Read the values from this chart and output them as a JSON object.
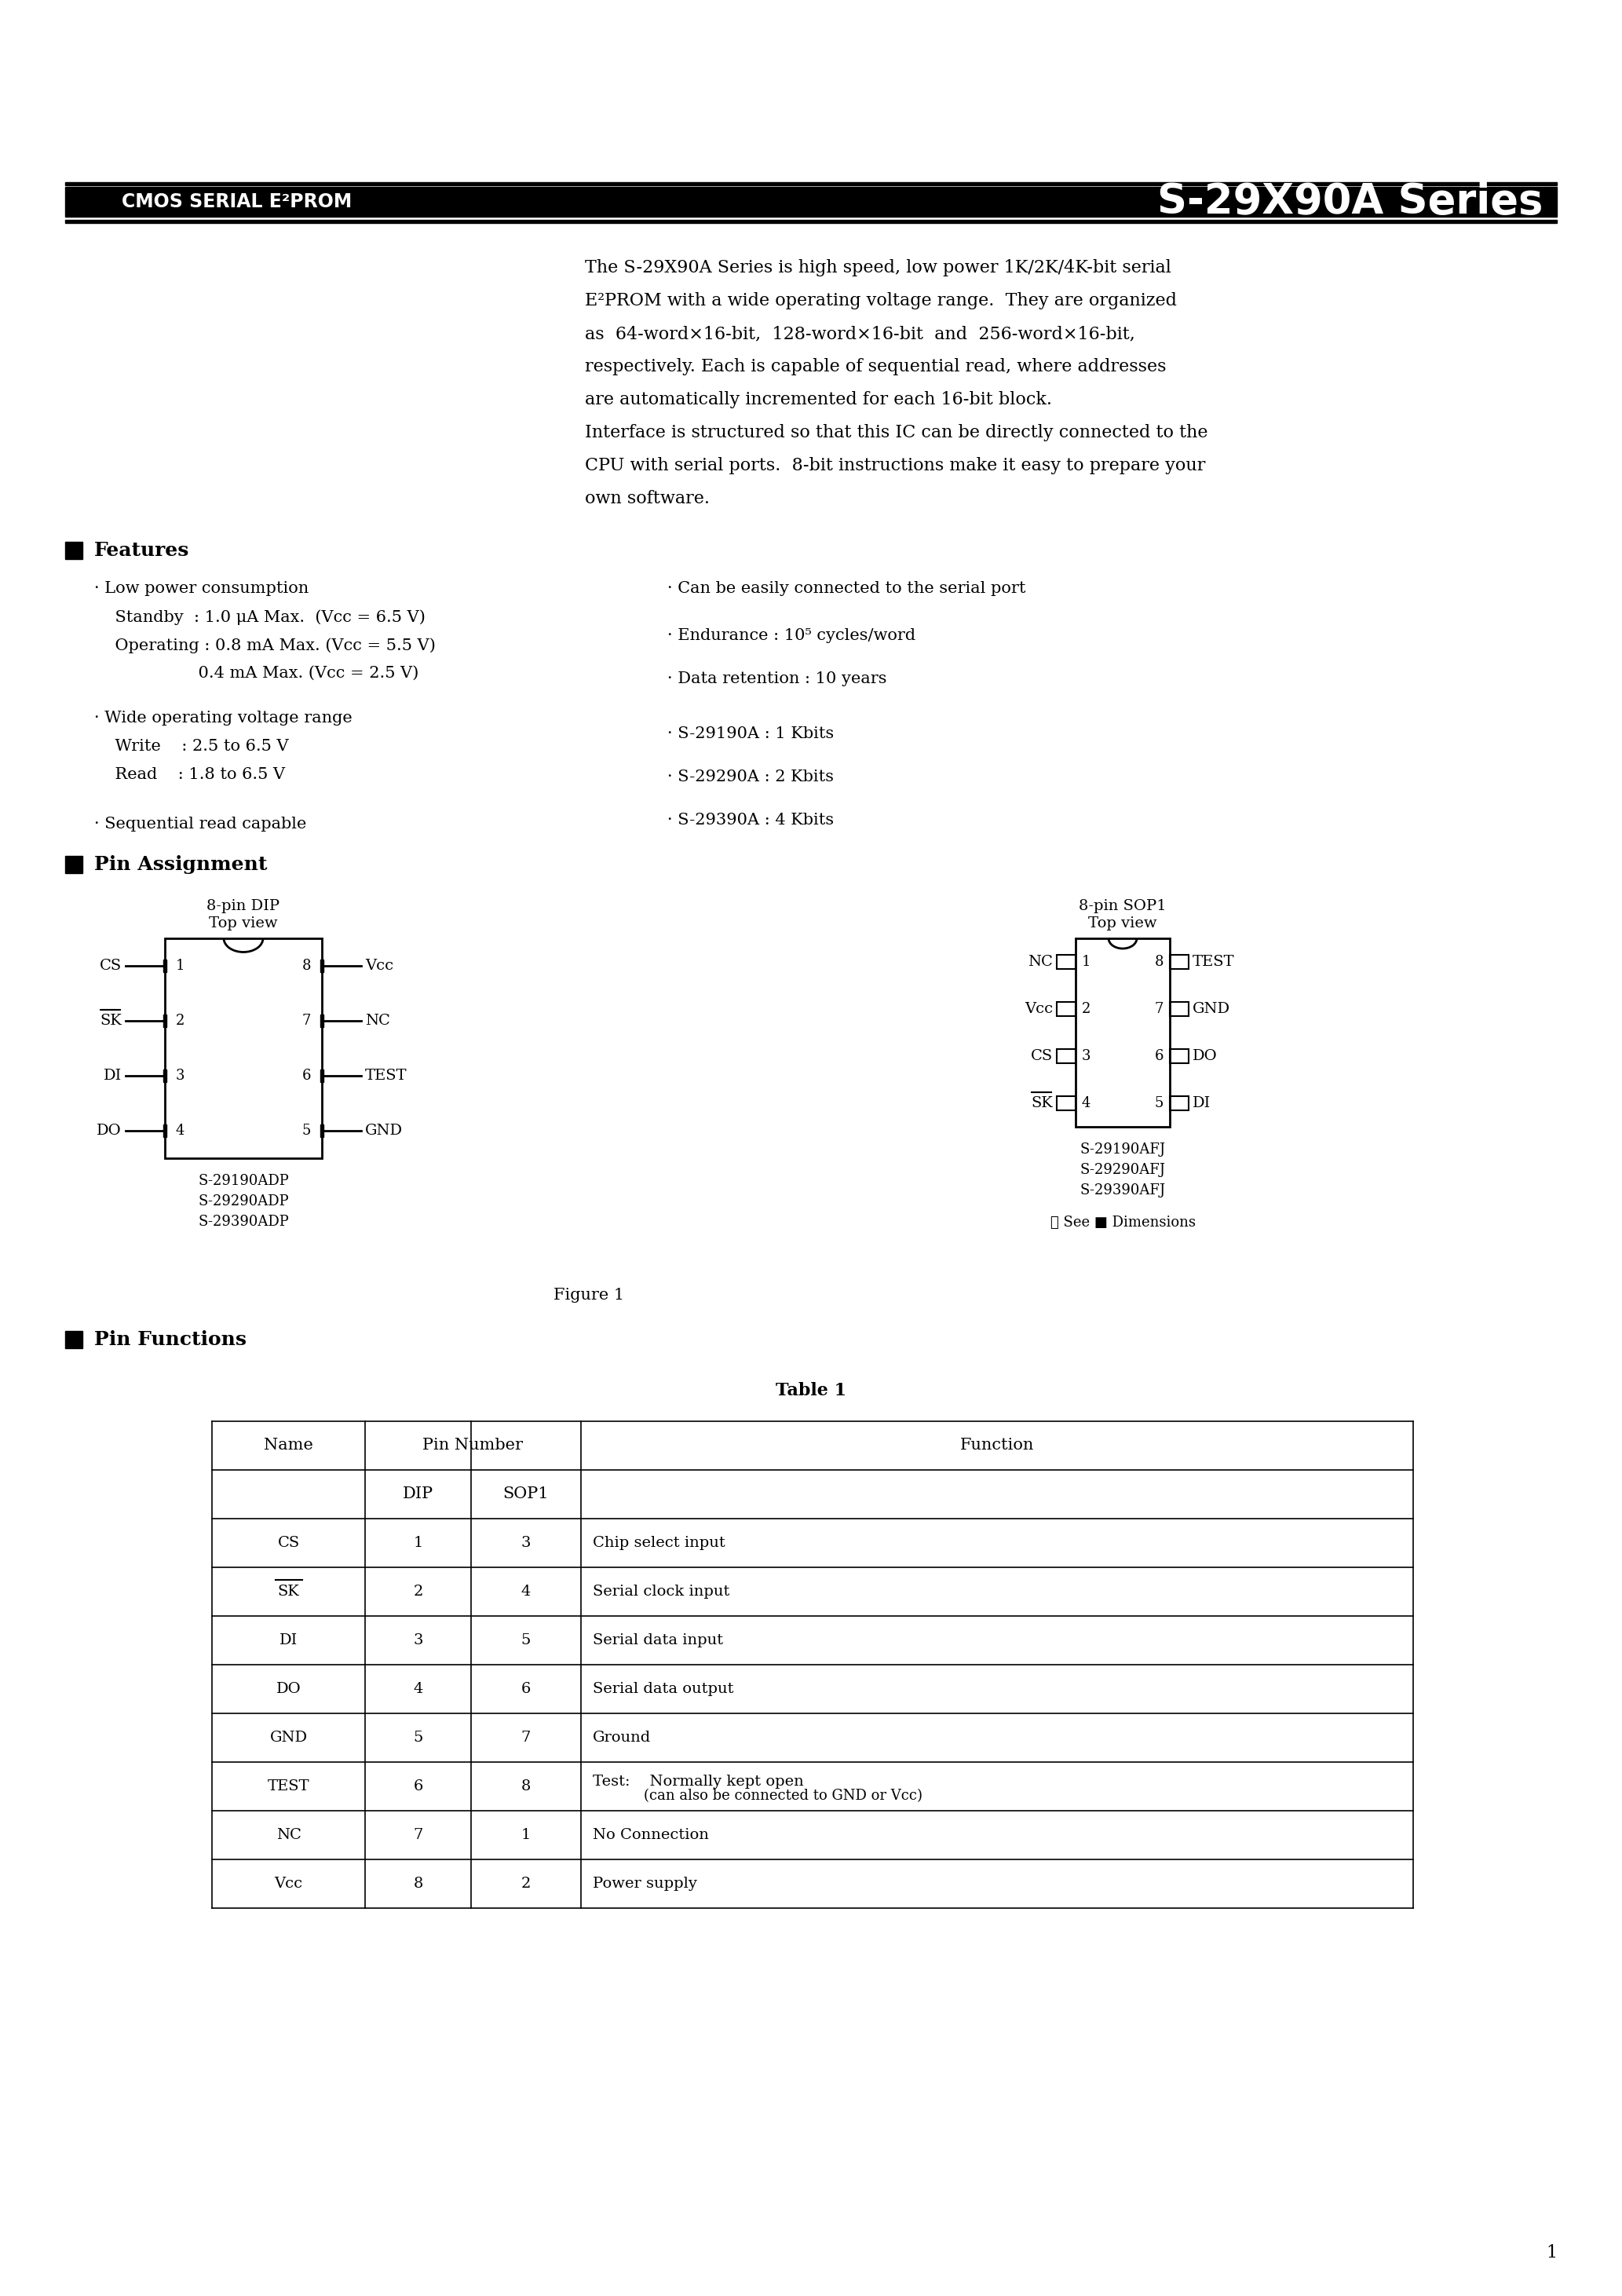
{
  "bg_color": "#ffffff",
  "text_color": "#000000",
  "title_left": "CMOS SERIAL E²PROM",
  "title_right": "S-29X90A Series",
  "desc_line1": "The S-29X90A Series is high speed, low power 1K/2K/4K-bit serial",
  "desc_line2": "E²PROM with a wide operating voltage range.  They are organized",
  "desc_line3": "as  64-word×16-bit,  128-word×16-bit  and  256-word×16-bit,",
  "desc_line4": "respectively. Each is capable of sequential read, where addresses",
  "desc_line5": "are automatically incremented for each 16-bit block.",
  "desc_line6": "Interface is structured so that this IC can be directly connected to the",
  "desc_line7": "CPU with serial ports.  8-bit instructions make it easy to prepare your",
  "desc_line8": "own software.",
  "features_title": "Features",
  "feat_l1": "· Low power consumption",
  "feat_l2": "    Standby  : 1.0 μA Max.  (Vcc = 6.5 V)",
  "feat_l3": "    Operating : 0.8 mA Max. (Vcc = 5.5 V)",
  "feat_l4": "                    0.4 mA Max. (Vcc = 2.5 V)",
  "feat_l5": "· Wide operating voltage range",
  "feat_l6": "    Write    : 2.5 to 6.5 V",
  "feat_l7": "    Read    : 1.8 to 6.5 V",
  "feat_l8": "· Sequential read capable",
  "feat_r1": "· Can be easily connected to the serial port",
  "feat_r2": "· Endurance : 10⁵ cycles/word",
  "feat_r3": "· Data retention : 10 years",
  "feat_r4": "· S-29190A : 1 Kbits",
  "feat_r5": "· S-29290A : 2 Kbits",
  "feat_r6": "· S-29390A : 4 Kbits",
  "pin_assign_title": "Pin Assignment",
  "dip_label1": "8-pin DIP",
  "dip_label2": "Top view",
  "sop_label1": "8-pin SOP1",
  "sop_label2": "Top view",
  "dip_left_names": [
    "CS",
    "SK",
    "DI",
    "DO"
  ],
  "dip_left_nums": [
    "1",
    "2",
    "3",
    "4"
  ],
  "dip_right_names": [
    "Vcc",
    "NC",
    "TEST",
    "GND"
  ],
  "dip_right_nums": [
    "8",
    "7",
    "6",
    "5"
  ],
  "sop_left_names": [
    "NC",
    "Vcc",
    "CS",
    "SK"
  ],
  "sop_left_nums": [
    "1",
    "2",
    "3",
    "4"
  ],
  "sop_right_names": [
    "TEST",
    "GND",
    "DO",
    "DI"
  ],
  "sop_right_nums": [
    "8",
    "7",
    "6",
    "5"
  ],
  "dip_models": [
    "S-29190ADP",
    "S-29290ADP",
    "S-29390ADP"
  ],
  "sop_models": [
    "S-29190AFJ",
    "S-29290AFJ",
    "S-29390AFJ"
  ],
  "sop_note": "※ See ■ Dimensions",
  "figure_caption": "Figure 1",
  "pin_func_title": "Pin Functions",
  "table_title": "Table 1",
  "table_rows": [
    [
      "CS",
      "1",
      "3",
      "Chip select input"
    ],
    [
      "SK",
      "2",
      "4",
      "Serial clock input"
    ],
    [
      "DI",
      "3",
      "5",
      "Serial data input"
    ],
    [
      "DO",
      "4",
      "6",
      "Serial data output"
    ],
    [
      "GND",
      "5",
      "7",
      "Ground"
    ],
    [
      "TEST",
      "6",
      "8",
      "Test:    Normally kept open\n(can also be connected to GND or Vcc)"
    ],
    [
      "NC",
      "7",
      "1",
      "No Connection"
    ],
    [
      "Vcc",
      "8",
      "2",
      "Power supply"
    ]
  ],
  "page_num": "1"
}
